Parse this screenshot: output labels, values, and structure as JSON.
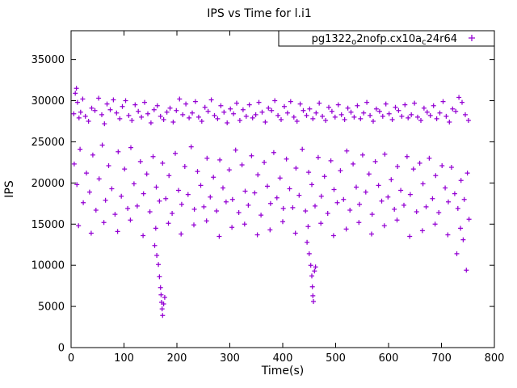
{
  "chart_data": {
    "type": "scatter",
    "title": "IPS vs Time for l.i1",
    "xlabel": "Time(s)",
    "ylabel": "IPS",
    "xlim": [
      0,
      800
    ],
    "ylim": [
      0,
      38500
    ],
    "xticks": [
      0,
      100,
      200,
      300,
      400,
      500,
      600,
      700,
      800
    ],
    "yticks": [
      0,
      5000,
      10000,
      15000,
      20000,
      25000,
      30000,
      35000
    ],
    "grid": false,
    "legend_position": "top-right-inside-box",
    "marker": "plus",
    "color": "#9400D3",
    "legend": {
      "prefix": "pg1322",
      "sub1": "o",
      "mid": "2nofp.cx10a",
      "sub2": "c",
      "suffix": "24r64"
    },
    "series": [
      {
        "name": "pg1322_o2nofp.cx10a_c24r64",
        "points": [
          [
            5,
            28400
          ],
          [
            8,
            30900
          ],
          [
            10,
            31500
          ],
          [
            12,
            29800
          ],
          [
            15,
            27900
          ],
          [
            18,
            28600
          ],
          [
            22,
            30200
          ],
          [
            27,
            28100
          ],
          [
            33,
            27500
          ],
          [
            39,
            29100
          ],
          [
            45,
            28800
          ],
          [
            52,
            30300
          ],
          [
            58,
            28300
          ],
          [
            63,
            27200
          ],
          [
            68,
            29600
          ],
          [
            74,
            28900
          ],
          [
            80,
            30100
          ],
          [
            86,
            28500
          ],
          [
            92,
            27800
          ],
          [
            97,
            29300
          ],
          [
            103,
            30000
          ],
          [
            109,
            28200
          ],
          [
            115,
            27600
          ],
          [
            121,
            29500
          ],
          [
            127,
            28700
          ],
          [
            133,
            28000
          ],
          [
            139,
            29800
          ],
          [
            145,
            28400
          ],
          [
            151,
            27300
          ],
          [
            157,
            28900
          ],
          [
            163,
            29400
          ],
          [
            169,
            28100
          ],
          [
            175,
            27700
          ],
          [
            181,
            28600
          ],
          [
            187,
            29100
          ],
          [
            193,
            27400
          ],
          [
            199,
            28800
          ],
          [
            205,
            30200
          ],
          [
            211,
            28300
          ],
          [
            217,
            29600
          ],
          [
            223,
            27900
          ],
          [
            229,
            28500
          ],
          [
            235,
            29900
          ],
          [
            241,
            28000
          ],
          [
            247,
            27500
          ],
          [
            253,
            29200
          ],
          [
            259,
            28700
          ],
          [
            265,
            30100
          ],
          [
            271,
            28200
          ],
          [
            277,
            27800
          ],
          [
            283,
            29400
          ],
          [
            289,
            28600
          ],
          [
            295,
            27300
          ],
          [
            301,
            29000
          ],
          [
            307,
            28400
          ],
          [
            313,
            29700
          ],
          [
            319,
            27600
          ],
          [
            325,
            28900
          ],
          [
            331,
            28100
          ],
          [
            337,
            29500
          ],
          [
            343,
            27900
          ],
          [
            349,
            28300
          ],
          [
            355,
            29800
          ],
          [
            361,
            28600
          ],
          [
            367,
            27400
          ],
          [
            373,
            29100
          ],
          [
            379,
            28800
          ],
          [
            385,
            30000
          ],
          [
            391,
            28200
          ],
          [
            397,
            27700
          ],
          [
            403,
            29300
          ],
          [
            409,
            28500
          ],
          [
            415,
            29900
          ],
          [
            421,
            28000
          ],
          [
            427,
            27500
          ],
          [
            433,
            29600
          ],
          [
            439,
            28800
          ],
          [
            445,
            28200
          ],
          [
            451,
            29000
          ],
          [
            457,
            27800
          ],
          [
            463,
            28500
          ],
          [
            469,
            29700
          ],
          [
            475,
            28100
          ],
          [
            481,
            27600
          ],
          [
            487,
            29200
          ],
          [
            493,
            28700
          ],
          [
            499,
            28000
          ],
          [
            505,
            29500
          ],
          [
            511,
            28300
          ],
          [
            517,
            27700
          ],
          [
            523,
            29100
          ],
          [
            529,
            28600
          ],
          [
            535,
            28000
          ],
          [
            541,
            29400
          ],
          [
            547,
            27800
          ],
          [
            553,
            28500
          ],
          [
            559,
            29800
          ],
          [
            565,
            28200
          ],
          [
            571,
            27500
          ],
          [
            577,
            29000
          ],
          [
            583,
            28700
          ],
          [
            589,
            28100
          ],
          [
            595,
            29600
          ],
          [
            601,
            28400
          ],
          [
            607,
            27700
          ],
          [
            613,
            29200
          ],
          [
            619,
            28800
          ],
          [
            625,
            28100
          ],
          [
            631,
            29500
          ],
          [
            637,
            27900
          ],
          [
            643,
            28300
          ],
          [
            649,
            29700
          ],
          [
            655,
            28000
          ],
          [
            661,
            27600
          ],
          [
            667,
            29100
          ],
          [
            673,
            28600
          ],
          [
            679,
            28200
          ],
          [
            685,
            29400
          ],
          [
            691,
            27800
          ],
          [
            697,
            28500
          ],
          [
            703,
            29900
          ],
          [
            709,
            28100
          ],
          [
            715,
            27400
          ],
          [
            721,
            29000
          ],
          [
            727,
            28700
          ],
          [
            733,
            30400
          ],
          [
            739,
            29800
          ],
          [
            745,
            28300
          ],
          [
            751,
            27600
          ],
          [
            6,
            22300
          ],
          [
            11,
            19800
          ],
          [
            17,
            24100
          ],
          [
            23,
            17600
          ],
          [
            29,
            21200
          ],
          [
            35,
            18900
          ],
          [
            41,
            23400
          ],
          [
            47,
            16700
          ],
          [
            53,
            20500
          ],
          [
            59,
            24600
          ],
          [
            65,
            17900
          ],
          [
            71,
            22100
          ],
          [
            77,
            19300
          ],
          [
            83,
            16200
          ],
          [
            89,
            23800
          ],
          [
            95,
            18400
          ],
          [
            101,
            21700
          ],
          [
            107,
            16900
          ],
          [
            113,
            24300
          ],
          [
            119,
            19900
          ],
          [
            125,
            17200
          ],
          [
            131,
            22600
          ],
          [
            137,
            18700
          ],
          [
            143,
            21100
          ],
          [
            149,
            16500
          ],
          [
            155,
            23200
          ],
          [
            161,
            19500
          ],
          [
            167,
            17800
          ],
          [
            173,
            22400
          ],
          [
            179,
            18100
          ],
          [
            185,
            20900
          ],
          [
            191,
            16300
          ],
          [
            197,
            23600
          ],
          [
            203,
            19100
          ],
          [
            209,
            17400
          ],
          [
            215,
            22000
          ],
          [
            221,
            18600
          ],
          [
            227,
            24400
          ],
          [
            233,
            16800
          ],
          [
            239,
            21400
          ],
          [
            245,
            19700
          ],
          [
            251,
            17100
          ],
          [
            257,
            23000
          ],
          [
            263,
            18300
          ],
          [
            269,
            20700
          ],
          [
            275,
            16600
          ],
          [
            281,
            22800
          ],
          [
            287,
            19400
          ],
          [
            293,
            17700
          ],
          [
            299,
            21600
          ],
          [
            305,
            18000
          ],
          [
            311,
            24000
          ],
          [
            317,
            16400
          ],
          [
            323,
            22200
          ],
          [
            329,
            19000
          ],
          [
            335,
            17300
          ],
          [
            341,
            23300
          ],
          [
            347,
            18800
          ],
          [
            353,
            21000
          ],
          [
            359,
            16100
          ],
          [
            365,
            22500
          ],
          [
            371,
            19600
          ],
          [
            377,
            17500
          ],
          [
            383,
            23700
          ],
          [
            389,
            18200
          ],
          [
            395,
            20600
          ],
          [
            401,
            16900
          ],
          [
            407,
            22900
          ],
          [
            413,
            19300
          ],
          [
            419,
            17000
          ],
          [
            425,
            21800
          ],
          [
            431,
            18500
          ],
          [
            437,
            24100
          ],
          [
            443,
            16600
          ],
          [
            449,
            21300
          ],
          [
            455,
            19800
          ],
          [
            461,
            17200
          ],
          [
            467,
            23100
          ],
          [
            473,
            18400
          ],
          [
            479,
            20800
          ],
          [
            485,
            16300
          ],
          [
            491,
            22700
          ],
          [
            497,
            19200
          ],
          [
            503,
            17600
          ],
          [
            509,
            21500
          ],
          [
            515,
            18000
          ],
          [
            521,
            23900
          ],
          [
            527,
            16700
          ],
          [
            533,
            22300
          ],
          [
            539,
            19500
          ],
          [
            545,
            17400
          ],
          [
            551,
            23400
          ],
          [
            557,
            18900
          ],
          [
            563,
            21100
          ],
          [
            569,
            16200
          ],
          [
            575,
            22600
          ],
          [
            581,
            19700
          ],
          [
            587,
            17800
          ],
          [
            593,
            23500
          ],
          [
            599,
            18300
          ],
          [
            605,
            20400
          ],
          [
            611,
            16800
          ],
          [
            617,
            22000
          ],
          [
            623,
            19100
          ],
          [
            629,
            17300
          ],
          [
            635,
            23200
          ],
          [
            641,
            18600
          ],
          [
            647,
            21700
          ],
          [
            653,
            16500
          ],
          [
            659,
            22400
          ],
          [
            665,
            19900
          ],
          [
            671,
            17100
          ],
          [
            677,
            23000
          ],
          [
            683,
            18100
          ],
          [
            689,
            20900
          ],
          [
            695,
            16400
          ],
          [
            701,
            22100
          ],
          [
            707,
            19400
          ],
          [
            713,
            17700
          ],
          [
            719,
            21900
          ],
          [
            725,
            18700
          ],
          [
            731,
            16900
          ],
          [
            737,
            20300
          ],
          [
            743,
            18000
          ],
          [
            749,
            21200
          ],
          [
            14,
            14800
          ],
          [
            38,
            13900
          ],
          [
            62,
            15200
          ],
          [
            88,
            14100
          ],
          [
            112,
            15500
          ],
          [
            136,
            13600
          ],
          [
            160,
            14500
          ],
          [
            184,
            15100
          ],
          [
            208,
            13800
          ],
          [
            232,
            14900
          ],
          [
            256,
            15400
          ],
          [
            280,
            13500
          ],
          [
            304,
            14600
          ],
          [
            328,
            15000
          ],
          [
            352,
            13700
          ],
          [
            376,
            14300
          ],
          [
            400,
            15300
          ],
          [
            424,
            13900
          ],
          [
            448,
            14700
          ],
          [
            472,
            15100
          ],
          [
            496,
            13600
          ],
          [
            520,
            14400
          ],
          [
            544,
            15200
          ],
          [
            568,
            13800
          ],
          [
            592,
            14800
          ],
          [
            616,
            15500
          ],
          [
            640,
            13500
          ],
          [
            664,
            14200
          ],
          [
            688,
            15000
          ],
          [
            712,
            13700
          ],
          [
            736,
            14500
          ],
          [
            752,
            15600
          ],
          [
            158,
            12400
          ],
          [
            162,
            11200
          ],
          [
            165,
            10100
          ],
          [
            167,
            8600
          ],
          [
            169,
            7300
          ],
          [
            170,
            6400
          ],
          [
            171,
            5500
          ],
          [
            172,
            4700
          ],
          [
            173,
            3900
          ],
          [
            175,
            5300
          ],
          [
            177,
            6100
          ],
          [
            446,
            12800
          ],
          [
            450,
            11400
          ],
          [
            453,
            10000
          ],
          [
            455,
            8700
          ],
          [
            456,
            7400
          ],
          [
            457,
            6300
          ],
          [
            458,
            5600
          ],
          [
            460,
            9300
          ],
          [
            462,
            9800
          ],
          [
            729,
            11400
          ],
          [
            741,
            13100
          ],
          [
            747,
            9400
          ]
        ]
      }
    ]
  }
}
